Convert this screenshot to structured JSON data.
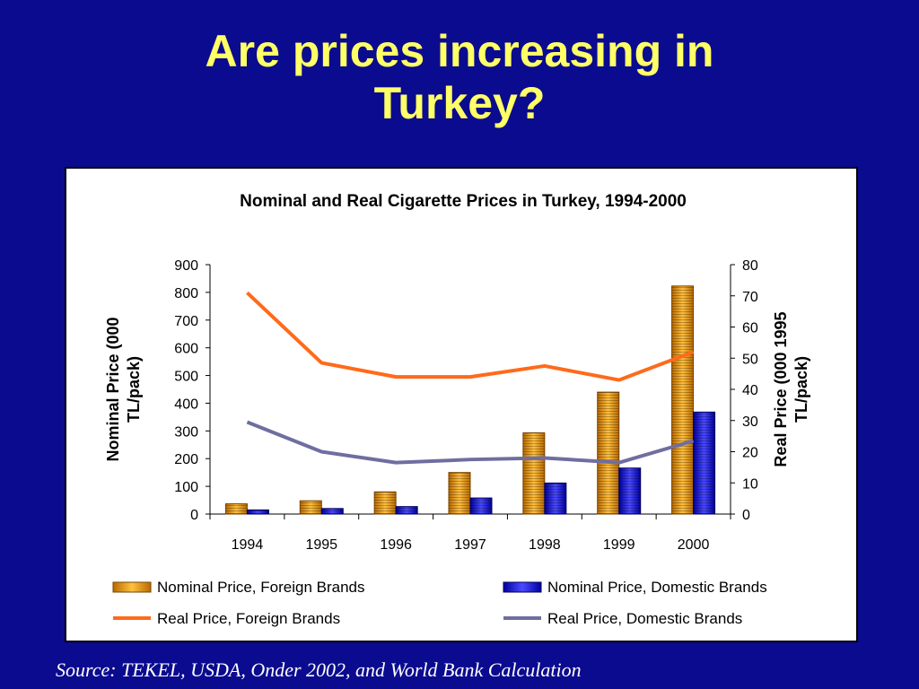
{
  "slide": {
    "title_line1": "Are prices increasing in",
    "title_line2": "Turkey?",
    "source": "Source: TEKEL, USDA, Onder 2002, and World Bank Calculation"
  },
  "colors": {
    "background": "#0b0b8f",
    "title": "#ffff66",
    "nominal_foreign": "#f0a020",
    "nominal_domestic": "#2a2ae0",
    "real_foreign": "#ff6a1a",
    "real_domestic": "#6e6ea0"
  },
  "chart_data": {
    "type": "bar",
    "title": "Nominal and Real Cigarette Prices in Turkey, 1994-2000",
    "xlabel": "",
    "ylabel": "Nominal Price (000 TL/pack)",
    "ylabel2": "Real Price (000 1995 TL/pack)",
    "ylim": [
      0,
      900
    ],
    "ylim2": [
      0,
      80
    ],
    "yticks": [
      "0",
      "100",
      "200",
      "300",
      "400",
      "500",
      "600",
      "700",
      "800",
      "900"
    ],
    "yticks2": [
      "0",
      "10",
      "20",
      "30",
      "40",
      "50",
      "60",
      "70",
      "80"
    ],
    "categories": [
      "1994",
      "1995",
      "1996",
      "1997",
      "1998",
      "1999",
      "2000"
    ],
    "grid": false,
    "legend_position": "bottom",
    "series": [
      {
        "name": "Nominal Price, Foreign Brands",
        "kind": "bar",
        "axis": "left",
        "values": [
          37,
          48,
          80,
          150,
          293,
          440,
          823
        ]
      },
      {
        "name": "Nominal Price, Domestic Brands",
        "kind": "bar",
        "axis": "left",
        "values": [
          15,
          20,
          27,
          58,
          112,
          166,
          368
        ]
      },
      {
        "name": "Real Price, Foreign Brands",
        "kind": "line",
        "axis": "right",
        "values": [
          71,
          48.5,
          44,
          44,
          47.5,
          43,
          52
        ]
      },
      {
        "name": "Real Price, Domestic Brands",
        "kind": "line",
        "axis": "right",
        "values": [
          29.5,
          20,
          16.5,
          17.5,
          18,
          16.5,
          23.5
        ]
      }
    ]
  }
}
